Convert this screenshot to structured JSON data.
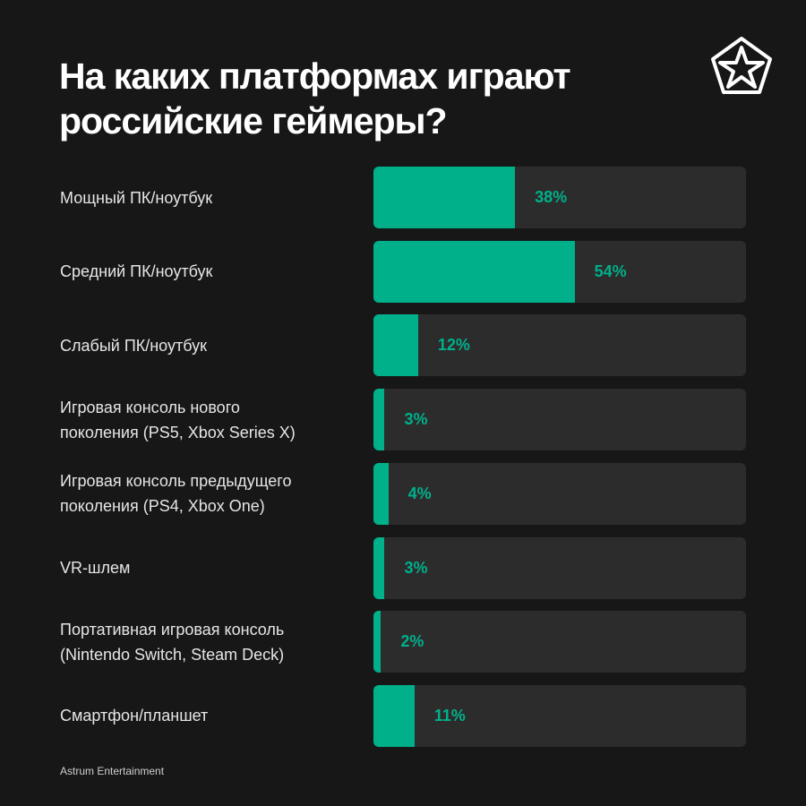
{
  "title": "На каких платформах играют российские геймеры?",
  "footer": "Astrum Entertainment",
  "colors": {
    "background": "#171717",
    "track": "#2c2c2c",
    "accent": "#00b08a"
  },
  "logo": {
    "icon": "star-pentagon-logo-icon"
  },
  "chart_data": {
    "type": "bar",
    "orientation": "horizontal",
    "title": "На каких платформах играют российские геймеры?",
    "categories": [
      "Мощный ПК/ноутбук",
      "Средний ПК/ноутбук",
      "Слабый ПК/ноутбук",
      "Игровая консоль нового\nпоколения (PS5, Xbox Series X)",
      "Игровая консоль предыдущего\nпоколения (PS4, Xbox One)",
      "VR-шлем",
      "Портативная игровая консоль\n(Nintendo Switch, Steam Deck)",
      "Смартфон/планшет"
    ],
    "values": [
      38,
      54,
      12,
      3,
      4,
      3,
      2,
      11
    ],
    "value_labels": [
      "38%",
      "54%",
      "12%",
      "3%",
      "4%",
      "3%",
      "2%",
      "11%"
    ],
    "unit": "%",
    "xlim": [
      0,
      100
    ]
  }
}
